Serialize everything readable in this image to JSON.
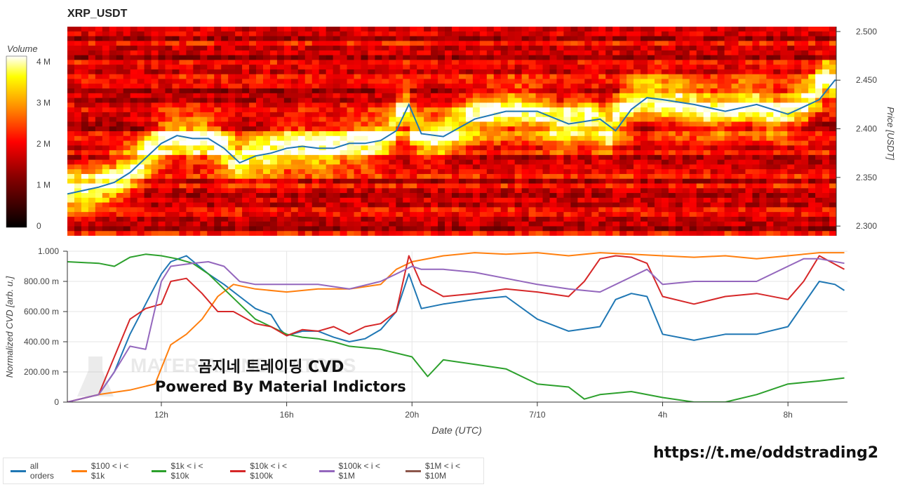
{
  "heatmap_title": "XRP_USDT",
  "colorbar": {
    "label": "Volume",
    "ticks": [
      "0",
      "1 M",
      "2 M",
      "3 M",
      "4 M"
    ]
  },
  "overlay": {
    "line1": "곰지네 트레이딩 CVD",
    "line2": "Powered By Material Indictors"
  },
  "watermark": "MATERIAL INDICATORS",
  "telegram_link": "https://t.me/oddstrading2",
  "colors": {
    "all_orders": "#1f77b4",
    "s100_1k": "#ff7f0e",
    "s1k_10k": "#2ca02c",
    "s10k_100k": "#d62728",
    "s100k_1M": "#9467bd",
    "s1M_10M": "#8c564b"
  },
  "chart_data": [
    {
      "type": "heatmap",
      "title": "XRP_USDT",
      "ylabel": "Price [USDT]",
      "ylim": [
        2.29,
        2.505
      ],
      "y_ticks": [
        "2.500",
        "2.450",
        "2.400",
        "2.350",
        "2.300"
      ],
      "y_tick_values": [
        2.5,
        2.45,
        2.4,
        2.35,
        2.3
      ],
      "price_line": {
        "name": "price",
        "x": [
          "9.0",
          "10.0",
          "10.5",
          "11.0",
          "11.5",
          "12.0",
          "12.5",
          "13.0",
          "13.5",
          "14.0",
          "14.5",
          "15.0",
          "15.5",
          "16.0",
          "16.5",
          "17.0",
          "17.5",
          "18.0",
          "18.5",
          "19.0",
          "19.5",
          "19.9",
          "20.3",
          "21.0",
          "22.0",
          "23.0",
          "24.0",
          "25.0",
          "26.0",
          "26.5",
          "27.0",
          "27.5",
          "28.0",
          "29.0",
          "30.0",
          "31.0",
          "32.0",
          "33.0",
          "33.5",
          "33.8"
        ],
        "y": [
          2.333,
          2.34,
          2.345,
          2.355,
          2.37,
          2.385,
          2.393,
          2.39,
          2.39,
          2.38,
          2.365,
          2.372,
          2.375,
          2.38,
          2.382,
          2.38,
          2.38,
          2.385,
          2.385,
          2.388,
          2.398,
          2.425,
          2.395,
          2.392,
          2.41,
          2.418,
          2.418,
          2.405,
          2.41,
          2.398,
          2.42,
          2.432,
          2.43,
          2.425,
          2.418,
          2.425,
          2.415,
          2.43,
          2.45,
          2.448
        ]
      }
    },
    {
      "type": "line",
      "xlabel": "Date (UTC)",
      "ylabel": "Normalized CVD [arb. u.]",
      "ylim": [
        0,
        1.0
      ],
      "xlim": [
        9.0,
        33.9
      ],
      "y_ticks": [
        "0",
        "200.00 m",
        "400.00 m",
        "600.00 m",
        "800.00 m",
        "1.000"
      ],
      "y_tick_values": [
        0,
        0.2,
        0.4,
        0.6,
        0.8,
        1.0
      ],
      "x_ticks": [
        "12h",
        "16h",
        "20h",
        "7/10",
        "4h",
        "8h"
      ],
      "x_tick_values": [
        12,
        16,
        20,
        24,
        28,
        32
      ],
      "series": [
        {
          "name": "all orders",
          "x": [
            9.0,
            10.0,
            10.5,
            11.0,
            11.5,
            12.0,
            12.3,
            12.8,
            13.5,
            14.0,
            14.5,
            15.0,
            15.5,
            15.8,
            16.0,
            16.5,
            17.0,
            17.5,
            18.0,
            18.5,
            19.0,
            19.5,
            19.9,
            20.3,
            21.0,
            22.0,
            23.0,
            24.0,
            25.0,
            26.0,
            26.5,
            27.0,
            27.5,
            28.0,
            29.0,
            30.0,
            31.0,
            32.0,
            33.0,
            33.5,
            33.8
          ],
          "y": [
            0.0,
            0.05,
            0.2,
            0.45,
            0.65,
            0.85,
            0.93,
            0.97,
            0.85,
            0.78,
            0.7,
            0.62,
            0.58,
            0.48,
            0.44,
            0.47,
            0.47,
            0.43,
            0.4,
            0.42,
            0.48,
            0.6,
            0.85,
            0.62,
            0.65,
            0.68,
            0.7,
            0.55,
            0.47,
            0.5,
            0.68,
            0.72,
            0.7,
            0.45,
            0.41,
            0.45,
            0.45,
            0.5,
            0.8,
            0.78,
            0.74
          ]
        },
        {
          "name": "$100 < i < $1k",
          "x": [
            9.0,
            10.0,
            11.0,
            11.8,
            12.3,
            12.8,
            13.3,
            13.8,
            14.3,
            15.0,
            16.0,
            17.0,
            18.0,
            19.0,
            19.5,
            20.0,
            21.0,
            22.0,
            23.0,
            24.0,
            25.0,
            26.0,
            27.0,
            28.0,
            29.0,
            30.0,
            31.0,
            32.0,
            33.0,
            33.8
          ],
          "y": [
            0.0,
            0.05,
            0.08,
            0.12,
            0.38,
            0.45,
            0.55,
            0.7,
            0.78,
            0.75,
            0.73,
            0.75,
            0.75,
            0.78,
            0.88,
            0.93,
            0.97,
            0.99,
            0.98,
            0.99,
            0.97,
            0.99,
            0.98,
            0.97,
            0.96,
            0.97,
            0.95,
            0.97,
            0.99,
            0.99
          ]
        },
        {
          "name": "$1k < i < $10k",
          "x": [
            9.0,
            10.0,
            10.5,
            11.0,
            11.5,
            12.0,
            12.5,
            13.0,
            13.5,
            14.0,
            14.5,
            15.0,
            15.5,
            16.0,
            16.5,
            17.0,
            17.5,
            18.0,
            19.0,
            20.0,
            20.5,
            21.0,
            22.0,
            23.0,
            24.0,
            25.0,
            25.5,
            26.0,
            27.0,
            28.0,
            29.0,
            30.0,
            31.0,
            32.0,
            33.0,
            33.8
          ],
          "y": [
            0.93,
            0.92,
            0.9,
            0.96,
            0.98,
            0.97,
            0.95,
            0.92,
            0.85,
            0.75,
            0.65,
            0.55,
            0.5,
            0.45,
            0.43,
            0.42,
            0.4,
            0.37,
            0.35,
            0.3,
            0.17,
            0.28,
            0.25,
            0.22,
            0.12,
            0.1,
            0.02,
            0.05,
            0.07,
            0.03,
            0.0,
            0.0,
            0.05,
            0.12,
            0.14,
            0.16
          ]
        },
        {
          "name": "$10k < i < $100k",
          "x": [
            9.0,
            10.0,
            10.5,
            11.0,
            11.5,
            12.0,
            12.3,
            12.8,
            13.3,
            13.8,
            14.3,
            15.0,
            15.5,
            16.0,
            16.5,
            17.0,
            17.5,
            18.0,
            18.5,
            19.0,
            19.5,
            19.9,
            20.3,
            21.0,
            22.0,
            23.0,
            24.0,
            25.0,
            25.5,
            26.0,
            26.5,
            27.0,
            27.5,
            28.0,
            29.0,
            30.0,
            31.0,
            32.0,
            32.5,
            33.0,
            33.8
          ],
          "y": [
            0.0,
            0.05,
            0.3,
            0.55,
            0.62,
            0.65,
            0.8,
            0.82,
            0.72,
            0.6,
            0.6,
            0.52,
            0.5,
            0.44,
            0.48,
            0.47,
            0.5,
            0.45,
            0.5,
            0.52,
            0.6,
            0.97,
            0.78,
            0.7,
            0.72,
            0.75,
            0.73,
            0.7,
            0.8,
            0.95,
            0.97,
            0.96,
            0.92,
            0.7,
            0.65,
            0.7,
            0.72,
            0.68,
            0.8,
            0.97,
            0.88
          ]
        },
        {
          "name": "$100k < i < $1M",
          "x": [
            9.0,
            10.0,
            10.5,
            11.0,
            11.5,
            12.0,
            12.3,
            13.0,
            13.5,
            14.0,
            14.5,
            15.0,
            16.0,
            17.0,
            18.0,
            19.0,
            19.5,
            20.0,
            20.3,
            21.0,
            22.0,
            23.0,
            24.0,
            25.0,
            26.0,
            27.0,
            27.5,
            28.0,
            29.0,
            30.0,
            31.0,
            32.0,
            32.5,
            33.0,
            33.8
          ],
          "y": [
            0.0,
            0.05,
            0.2,
            0.37,
            0.35,
            0.8,
            0.9,
            0.92,
            0.93,
            0.9,
            0.8,
            0.78,
            0.78,
            0.78,
            0.75,
            0.8,
            0.85,
            0.9,
            0.88,
            0.88,
            0.86,
            0.82,
            0.78,
            0.75,
            0.73,
            0.83,
            0.88,
            0.78,
            0.8,
            0.8,
            0.8,
            0.9,
            0.95,
            0.95,
            0.92
          ]
        }
      ]
    }
  ],
  "legend_items": [
    {
      "label": "all orders",
      "color": "#1f77b4"
    },
    {
      "label": "$100 < i < $1k",
      "color": "#ff7f0e"
    },
    {
      "label": "$1k < i < $10k",
      "color": "#2ca02c"
    },
    {
      "label": "$10k < i < $100k",
      "color": "#d62728"
    },
    {
      "label": "$100k < i < $1M",
      "color": "#9467bd"
    },
    {
      "label": "$1M < i < $10M",
      "color": "#8c564b"
    }
  ]
}
